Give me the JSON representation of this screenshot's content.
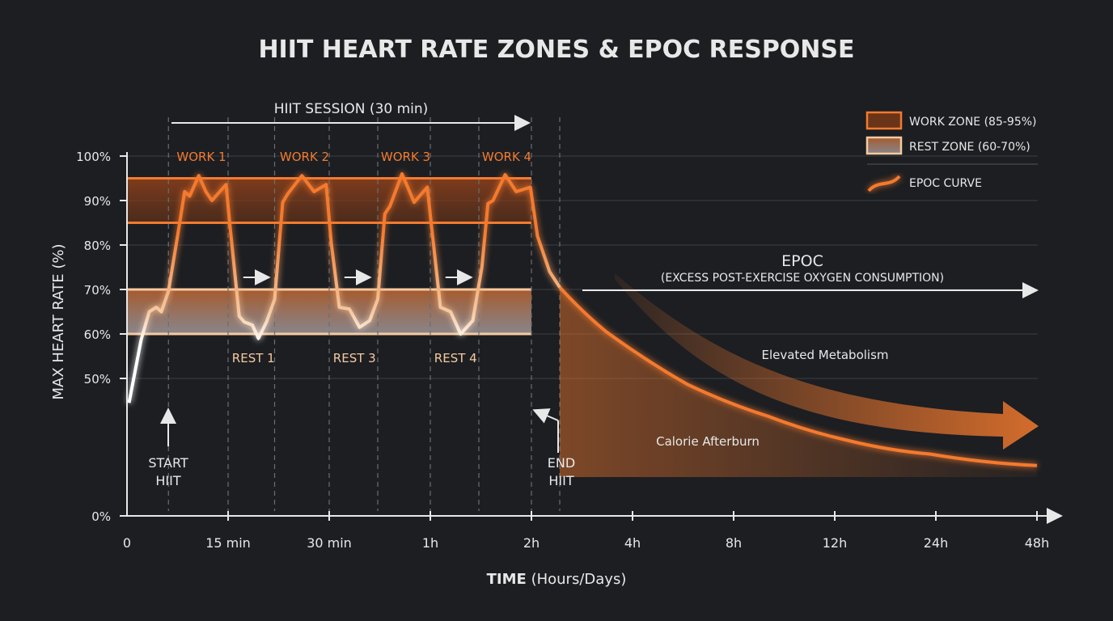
{
  "chart_data": {
    "type": "line",
    "title": "HIIT HEART RATE ZONES & EPOC RESPONSE",
    "ylabel": "MAX HEART RATE (%)",
    "xlabel_bold": "TIME",
    "xlabel_rest": "(Hours/Days)",
    "x_ticks": [
      "0",
      "15 min",
      "30 min",
      "1h",
      "2h",
      "4h",
      "8h",
      "12h",
      "24h",
      "48h"
    ],
    "y_ticks": [
      "100%",
      "90%",
      "80%",
      "70%",
      "60%",
      "50%",
      "0%"
    ],
    "y_tick_values": [
      100,
      90,
      80,
      70,
      60,
      50,
      0
    ],
    "grid": true,
    "colors": {
      "background": "#1c1e22",
      "work": "#f47a2e",
      "rest": "#f6c9a0",
      "epoc": "#f47a2e",
      "text": "#e8e8e8"
    },
    "zones": [
      {
        "name": "WORK ZONE (85-95%)",
        "from": 85,
        "to": 95
      },
      {
        "name": "REST ZONE (60-70%)",
        "from": 60,
        "to": 70
      }
    ],
    "legend": {
      "placement": "top-right",
      "items": [
        "WORK ZONE (85-95%)",
        "REST ZONE (60-70%)",
        "EPOC CURVE"
      ]
    },
    "session_label": "HIIT SESSION (30 min)",
    "work_labels": [
      "WORK 1",
      "WORK 2",
      "WORK 3",
      "WORK 4"
    ],
    "rest_labels": [
      "REST 1",
      "REST 3",
      "REST 4"
    ],
    "annotations": {
      "start": [
        "START",
        "HIIT"
      ],
      "end": [
        "END",
        "HIIT"
      ],
      "epoc_title": "EPOC",
      "epoc_subtitle": "(EXCESS POST-EXERCISE OXYGEN CONSUMPTION)",
      "elevated": "Elevated Metabolism",
      "afterburn": "Calorie Afterburn"
    },
    "heart_rate_series": {
      "x_unit": "position on x tick scale (0 = '0', 4 = '2h', 9 = '48h')",
      "points": [
        [
          0.02,
          44.5
        ],
        [
          0.14,
          58.7
        ],
        [
          0.22,
          65
        ],
        [
          0.29,
          66
        ],
        [
          0.34,
          65
        ],
        [
          0.41,
          69.6
        ],
        [
          0.5,
          82
        ],
        [
          0.57,
          92
        ],
        [
          0.62,
          91
        ],
        [
          0.71,
          95.6
        ],
        [
          0.78,
          92
        ],
        [
          0.84,
          90
        ],
        [
          0.98,
          93.6
        ],
        [
          1.02,
          84
        ],
        [
          1.11,
          64
        ],
        [
          1.16,
          62.7
        ],
        [
          1.24,
          62
        ],
        [
          1.3,
          59
        ],
        [
          1.38,
          62.7
        ],
        [
          1.46,
          67.8
        ],
        [
          1.54,
          89.6
        ],
        [
          1.59,
          91.5
        ],
        [
          1.73,
          95.6
        ],
        [
          1.85,
          92
        ],
        [
          1.97,
          93.6
        ],
        [
          2.02,
          80.5
        ],
        [
          2.1,
          66
        ],
        [
          2.2,
          65.6
        ],
        [
          2.3,
          61.5
        ],
        [
          2.4,
          63
        ],
        [
          2.48,
          67.8
        ],
        [
          2.55,
          87
        ],
        [
          2.6,
          88.7
        ],
        [
          2.72,
          96
        ],
        [
          2.84,
          89.6
        ],
        [
          2.97,
          93
        ],
        [
          3.03,
          80.5
        ],
        [
          3.1,
          66
        ],
        [
          3.2,
          65
        ],
        [
          3.3,
          60
        ],
        [
          3.42,
          63
        ],
        [
          3.51,
          75
        ],
        [
          3.57,
          89.3
        ],
        [
          3.62,
          90
        ],
        [
          3.74,
          95.8
        ],
        [
          3.85,
          92
        ],
        [
          3.99,
          93
        ],
        [
          4.06,
          82
        ],
        [
          4.18,
          74
        ],
        [
          4.28,
          70.5
        ]
      ]
    },
    "epoc_series": {
      "name": "EPOC CURVE",
      "points": [
        [
          4.28,
          70.5
        ],
        [
          4.74,
          60.5
        ],
        [
          5.54,
          48.7
        ],
        [
          6.34,
          41.5
        ],
        [
          7.14,
          36
        ],
        [
          7.94,
          33
        ],
        [
          9,
          30.4
        ]
      ]
    }
  }
}
